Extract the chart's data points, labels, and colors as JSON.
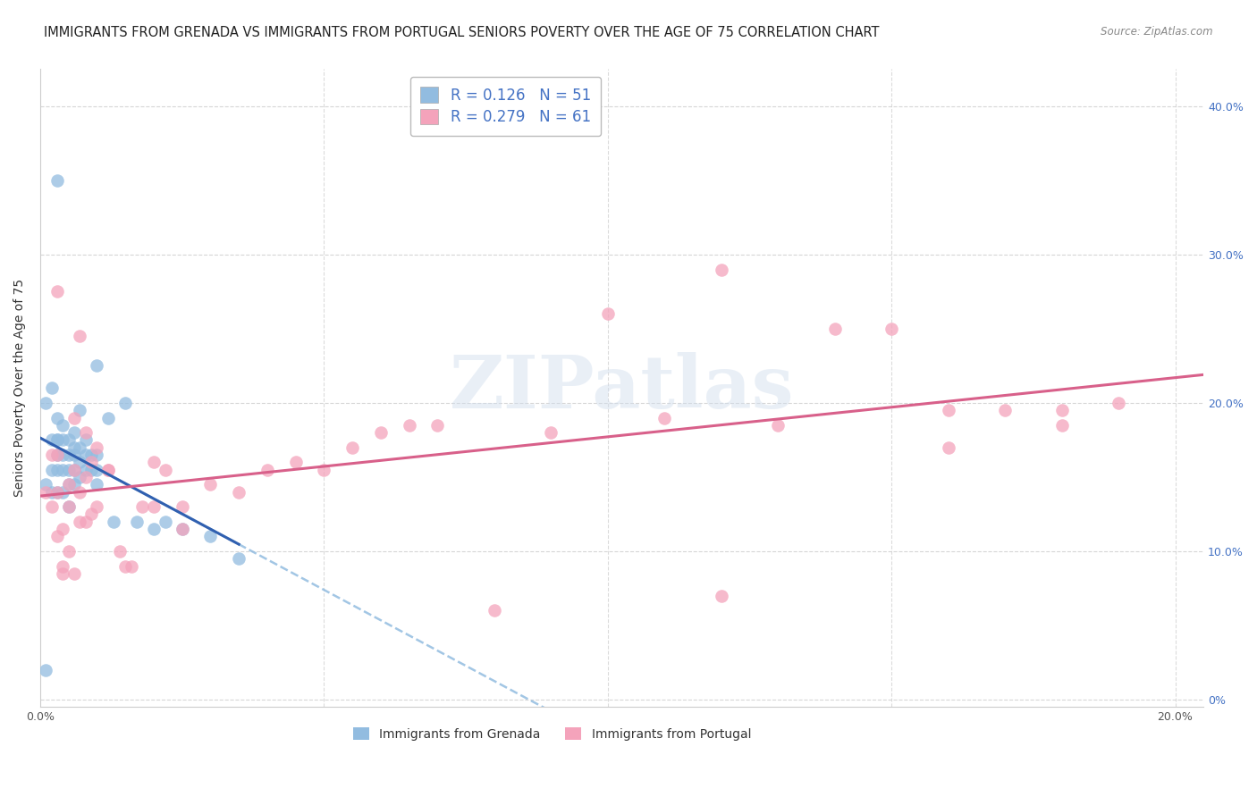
{
  "title": "IMMIGRANTS FROM GRENADA VS IMMIGRANTS FROM PORTUGAL SENIORS POVERTY OVER THE AGE OF 75 CORRELATION CHART",
  "source": "Source: ZipAtlas.com",
  "ylabel": "Seniors Poverty Over the Age of 75",
  "xlim": [
    0.0,
    0.205
  ],
  "ylim": [
    -0.005,
    0.425
  ],
  "xtick_positions": [
    0.0,
    0.05,
    0.1,
    0.15,
    0.2
  ],
  "xtick_labels": [
    "0.0%",
    "",
    "",
    "",
    "20.0%"
  ],
  "ytick_positions": [
    0.0,
    0.1,
    0.2,
    0.3,
    0.4
  ],
  "ytick_labels_right": [
    "0%",
    "10.0%",
    "20.0%",
    "30.0%",
    "40.0%"
  ],
  "grenada_R": "0.126",
  "grenada_N": "51",
  "portugal_R": "0.279",
  "portugal_N": "61",
  "grenada_color": "#92bce0",
  "portugal_color": "#f4a3bb",
  "grenada_line_color": "#3060b0",
  "portugal_line_color": "#d8608a",
  "dashed_line_color": "#92bce0",
  "background_color": "#ffffff",
  "grid_color": "#cccccc",
  "title_fontsize": 10.5,
  "ylabel_fontsize": 10,
  "tick_fontsize": 9,
  "legend_fontsize": 12,
  "watermark_text": "ZIPatlas",
  "scatter_size": 110,
  "grenada_x": [
    0.001,
    0.001,
    0.001,
    0.002,
    0.002,
    0.002,
    0.002,
    0.003,
    0.003,
    0.003,
    0.003,
    0.003,
    0.003,
    0.004,
    0.004,
    0.004,
    0.004,
    0.004,
    0.005,
    0.005,
    0.005,
    0.005,
    0.005,
    0.006,
    0.006,
    0.006,
    0.006,
    0.006,
    0.007,
    0.007,
    0.007,
    0.007,
    0.008,
    0.008,
    0.008,
    0.009,
    0.009,
    0.01,
    0.01,
    0.01,
    0.01,
    0.012,
    0.013,
    0.015,
    0.017,
    0.02,
    0.022,
    0.025,
    0.03,
    0.035,
    0.003
  ],
  "grenada_y": [
    0.02,
    0.145,
    0.2,
    0.14,
    0.155,
    0.175,
    0.21,
    0.14,
    0.155,
    0.165,
    0.175,
    0.175,
    0.19,
    0.14,
    0.155,
    0.165,
    0.175,
    0.185,
    0.13,
    0.145,
    0.155,
    0.165,
    0.175,
    0.145,
    0.155,
    0.165,
    0.17,
    0.18,
    0.15,
    0.16,
    0.17,
    0.195,
    0.155,
    0.165,
    0.175,
    0.155,
    0.165,
    0.145,
    0.155,
    0.165,
    0.225,
    0.19,
    0.12,
    0.2,
    0.12,
    0.115,
    0.12,
    0.115,
    0.11,
    0.095,
    0.35
  ],
  "portugal_x": [
    0.001,
    0.002,
    0.002,
    0.003,
    0.003,
    0.003,
    0.004,
    0.004,
    0.005,
    0.005,
    0.005,
    0.006,
    0.006,
    0.007,
    0.007,
    0.008,
    0.008,
    0.009,
    0.009,
    0.01,
    0.012,
    0.014,
    0.016,
    0.018,
    0.02,
    0.022,
    0.025,
    0.03,
    0.035,
    0.04,
    0.045,
    0.05,
    0.055,
    0.06,
    0.065,
    0.07,
    0.08,
    0.09,
    0.1,
    0.11,
    0.12,
    0.13,
    0.14,
    0.15,
    0.16,
    0.17,
    0.18,
    0.19,
    0.003,
    0.004,
    0.006,
    0.007,
    0.008,
    0.01,
    0.012,
    0.015,
    0.02,
    0.025,
    0.12,
    0.16,
    0.18
  ],
  "portugal_y": [
    0.14,
    0.13,
    0.165,
    0.11,
    0.14,
    0.165,
    0.09,
    0.115,
    0.1,
    0.13,
    0.145,
    0.155,
    0.19,
    0.12,
    0.14,
    0.15,
    0.18,
    0.125,
    0.16,
    0.13,
    0.155,
    0.1,
    0.09,
    0.13,
    0.13,
    0.155,
    0.13,
    0.145,
    0.14,
    0.155,
    0.16,
    0.155,
    0.17,
    0.18,
    0.185,
    0.185,
    0.06,
    0.18,
    0.26,
    0.19,
    0.29,
    0.185,
    0.25,
    0.25,
    0.17,
    0.195,
    0.185,
    0.2,
    0.275,
    0.085,
    0.085,
    0.245,
    0.12,
    0.17,
    0.155,
    0.09,
    0.16,
    0.115,
    0.07,
    0.195,
    0.195
  ]
}
